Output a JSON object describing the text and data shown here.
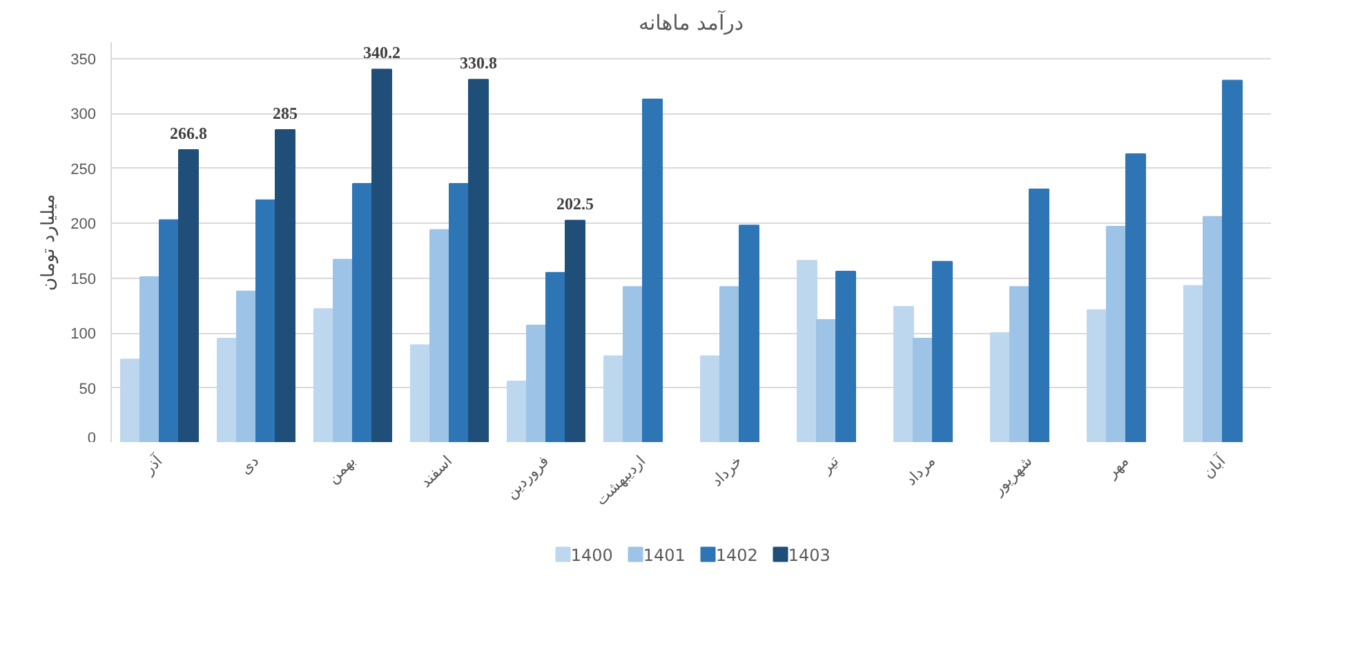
{
  "chart_data": {
    "type": "bar",
    "title": "درآمد ماهانه",
    "ylabel": "میلیارد تومان",
    "categories": [
      "آذر",
      "دی",
      "بهمن",
      "اسفند",
      "فروردین",
      "اردیبهشت",
      "خرداد",
      "تیر",
      "مرداد",
      "شهریور",
      "مهر",
      "آبان"
    ],
    "series": [
      {
        "name": "1400",
        "color": "#bdd7ee",
        "values": [
          76,
          95,
          122,
          89,
          56,
          79,
          79,
          166,
          124,
          100,
          121,
          143
        ]
      },
      {
        "name": "1401",
        "color": "#9dc3e6",
        "values": [
          151,
          138,
          167,
          194,
          107,
          142,
          142,
          112,
          95,
          142,
          197,
          206
        ]
      },
      {
        "name": "1402",
        "color": "#2e75b6",
        "values": [
          203,
          221,
          236,
          236,
          155,
          313,
          198,
          156,
          165,
          231,
          263,
          330
        ]
      },
      {
        "name": "1403",
        "color": "#1f4e79",
        "values": [
          266.8,
          285,
          340.2,
          330.8,
          202.5,
          null,
          null,
          null,
          null,
          null,
          null,
          null
        ],
        "value_labels": [
          "266.8",
          "285",
          "340.2",
          "330.8",
          "202.5",
          null,
          null,
          null,
          null,
          null,
          null,
          null
        ]
      }
    ],
    "ylim": [
      0,
      365
    ],
    "yticks": [
      0,
      50,
      100,
      150,
      200,
      250,
      300,
      350
    ],
    "grid": "y",
    "legend": "bottom"
  }
}
